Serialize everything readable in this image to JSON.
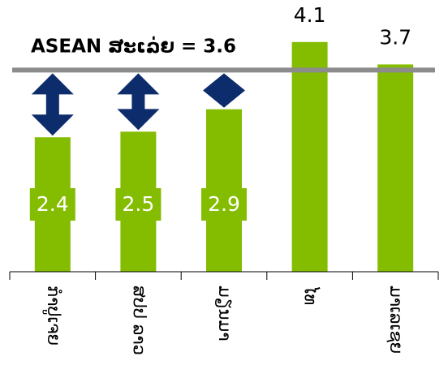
{
  "chart_data": {
    "type": "bar",
    "categories": [
      "ກຳປູເຈຍ",
      "ສປປ ລາວ",
      "ມຽນມາ",
      "ໄທ",
      "ມາເລເຊຍ"
    ],
    "values": [
      2.4,
      2.5,
      2.9,
      4.1,
      3.7
    ],
    "color": "#84bd00",
    "ylim": [
      0,
      4.85
    ],
    "average": 3.6,
    "average_label": "ASEAN ສະເລ່ຍ = 3.6",
    "average_color": "#8c8c8c",
    "arrow_color": "#0d2c6c"
  }
}
